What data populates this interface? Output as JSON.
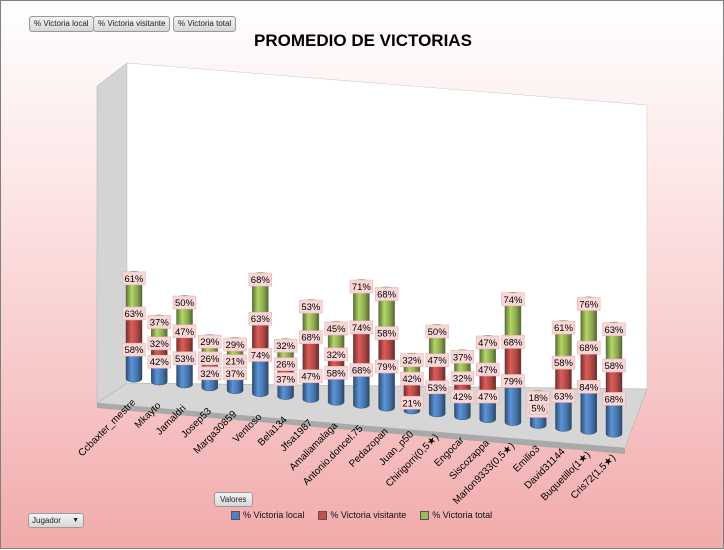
{
  "filter_buttons": [
    "% Victoria local",
    "% Victoria visitante",
    "% Victoria total"
  ],
  "valores_button": "Valores",
  "jugador_button": "Jugador",
  "chart_data": {
    "type": "bar",
    "stacked": true,
    "three_d": true,
    "title": "PROMEDIO DE VICTORIAS",
    "categories": [
      "Ccbaxter_mestre",
      "Mkayto",
      "Jamaldri",
      "Josep53",
      "Marga30859",
      "Ventoso",
      "Bela134",
      "Jfsa1987",
      "Amaliamalaga",
      "Antonio.doncel.75",
      "Pedazopan",
      "Juan_p50",
      "Chirigorri(0,5★)",
      "Engocar",
      "Siscozappa",
      "Marlon9333(0,5★)",
      "Emilio3",
      "David31144",
      "Buquetillo(1★)",
      "Cris72(1,5★)"
    ],
    "series": [
      {
        "name": "% Victoria local",
        "color": "#4f81bd",
        "values": [
          58,
          42,
          53,
          32,
          37,
          74,
          37,
          47,
          58,
          68,
          79,
          21,
          53,
          42,
          47,
          79,
          32,
          63,
          84,
          68
        ]
      },
      {
        "name": "% Victoria visitante",
        "color": "#c0504d",
        "values": [
          63,
          32,
          47,
          26,
          21,
          63,
          26,
          68,
          32,
          74,
          58,
          42,
          47,
          32,
          47,
          68,
          5,
          58,
          68,
          58
        ]
      },
      {
        "name": "% Victoria total",
        "color": "#9bbb59",
        "values": [
          61,
          37,
          50,
          29,
          29,
          68,
          32,
          53,
          45,
          71,
          68,
          32,
          50,
          37,
          47,
          74,
          18,
          61,
          76,
          63
        ]
      }
    ],
    "legend_position": "bottom",
    "grid": false,
    "value_labels": [
      "58%",
      "42%",
      "53%",
      "32%",
      "37%",
      "74%",
      "37%",
      "47%",
      "58%",
      "68%",
      "79%",
      "21%",
      "53%",
      "42%",
      "47%",
      "79%",
      "32%",
      "63%",
      "84%",
      "68%"
    ]
  }
}
